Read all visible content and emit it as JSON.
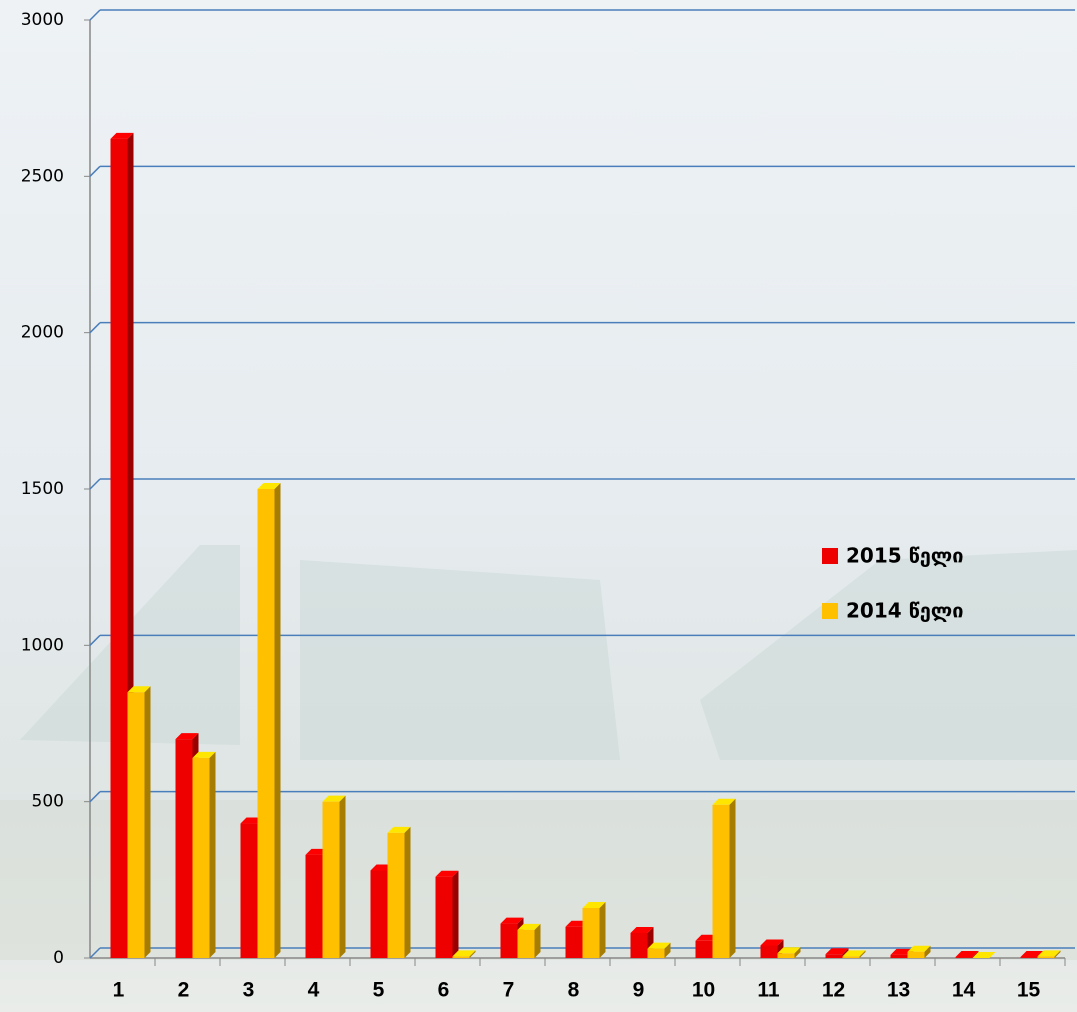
{
  "chart_data": {
    "type": "bar3d",
    "categories": [
      "1",
      "2",
      "3",
      "4",
      "5",
      "6",
      "7",
      "8",
      "9",
      "10",
      "11",
      "12",
      "13",
      "14",
      "15"
    ],
    "series": [
      {
        "name": "2015 წელი",
        "color": "#ee0000",
        "values": [
          2620,
          700,
          430,
          330,
          280,
          260,
          110,
          100,
          80,
          55,
          40,
          12,
          10,
          3,
          3
        ]
      },
      {
        "name": "2014 წელი",
        "color": "#ffc000",
        "values": [
          850,
          640,
          1500,
          500,
          400,
          5,
          90,
          160,
          30,
          490,
          15,
          5,
          20,
          0,
          5
        ]
      }
    ],
    "ylim": [
      0,
      3000
    ],
    "yticks": [
      0,
      500,
      1000,
      1500,
      2000,
      2500,
      3000
    ],
    "grid": true,
    "legend": "right"
  }
}
